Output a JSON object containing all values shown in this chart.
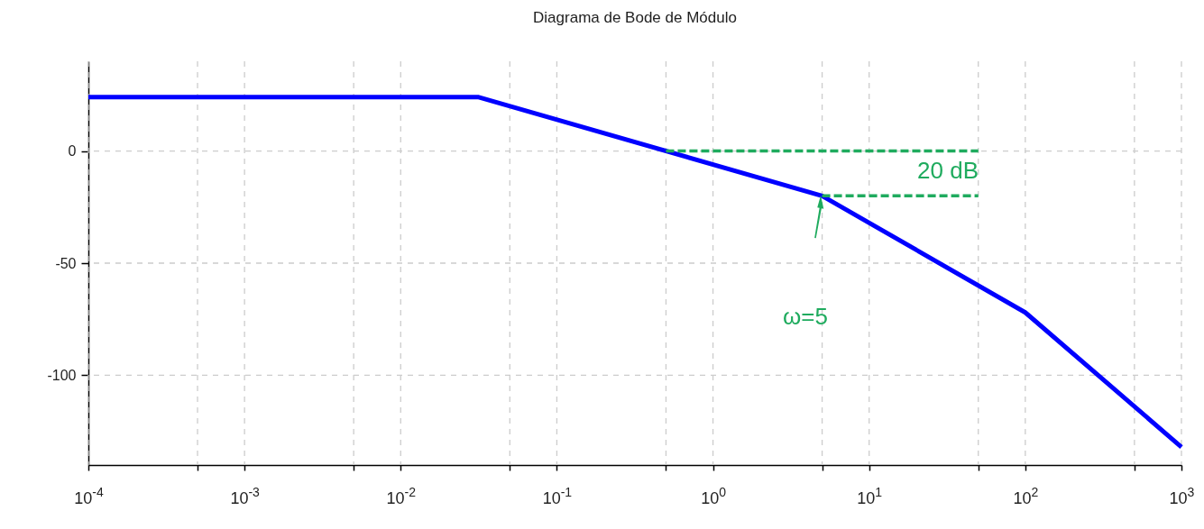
{
  "chart_data": {
    "type": "line",
    "title": "Diagrama de Bode de Módulo",
    "log": "x",
    "grid": true,
    "line_style": "solid",
    "xlim": [
      0.0001,
      1000
    ],
    "ylim": [
      -140,
      40
    ],
    "xticks": [
      {
        "value": 0.0001,
        "label": "10$^{-4}$"
      },
      {
        "value": 0.0005,
        "label": null
      },
      {
        "value": 0.001,
        "label": "10$^{-3}$"
      },
      {
        "value": 0.005,
        "label": null
      },
      {
        "value": 0.01,
        "label": "10$^{-2}$"
      },
      {
        "value": 0.05,
        "label": null
      },
      {
        "value": 0.1,
        "label": "10$^{-1}$"
      },
      {
        "value": 0.5,
        "label": null
      },
      {
        "value": 1,
        "label": "10$^{0}$"
      },
      {
        "value": 5,
        "label": null
      },
      {
        "value": 10,
        "label": "10$^{1}$"
      },
      {
        "value": 50,
        "label": null
      },
      {
        "value": 100,
        "label": "10$^{2}$"
      },
      {
        "value": 500,
        "label": null
      },
      {
        "value": 1000,
        "label": "10$^{3}$"
      }
    ],
    "yticks": [
      -100,
      -50,
      0
    ],
    "series": [
      {
        "color": "#0000ff",
        "x": [
          0.0001,
          0.0316,
          5,
          100,
          1000
        ],
        "values": [
          24,
          24,
          -20,
          -72,
          -132
        ]
      },
      {
        "color": "#1fab5e",
        "line_style": "dashed",
        "x": [
          0.5,
          50
        ],
        "values": [
          0,
          0
        ]
      },
      {
        "color": "#1fab5e",
        "line_style": "dashed",
        "x": [
          5,
          50
        ],
        "values": [
          -20,
          -20
        ]
      }
    ],
    "annotations": [
      "20 dB",
      "ω=5"
    ]
  }
}
